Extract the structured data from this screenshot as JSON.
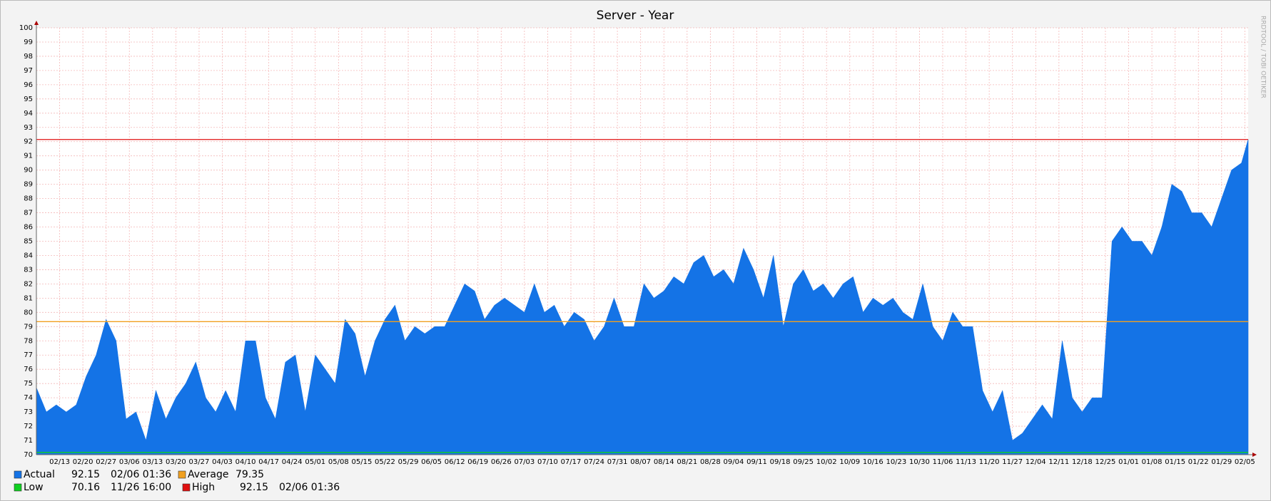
{
  "chart_data": {
    "type": "area",
    "title": "Server - Year",
    "watermark": "RRDTOOL / TOBI OETIKER",
    "xlim": [
      0,
      365
    ],
    "xticks": [
      {
        "value": 7,
        "label": "02/13"
      },
      {
        "value": 14,
        "label": "02/20"
      },
      {
        "value": 21,
        "label": "02/27"
      },
      {
        "value": 28,
        "label": "03/06"
      },
      {
        "value": 35,
        "label": "03/13"
      },
      {
        "value": 42,
        "label": "03/20"
      },
      {
        "value": 49,
        "label": "03/27"
      },
      {
        "value": 56,
        "label": "04/03"
      },
      {
        "value": 63,
        "label": "04/10"
      },
      {
        "value": 70,
        "label": "04/17"
      },
      {
        "value": 77,
        "label": "04/24"
      },
      {
        "value": 84,
        "label": "05/01"
      },
      {
        "value": 91,
        "label": "05/08"
      },
      {
        "value": 98,
        "label": "05/15"
      },
      {
        "value": 105,
        "label": "05/22"
      },
      {
        "value": 112,
        "label": "05/29"
      },
      {
        "value": 119,
        "label": "06/05"
      },
      {
        "value": 126,
        "label": "06/12"
      },
      {
        "value": 133,
        "label": "06/19"
      },
      {
        "value": 140,
        "label": "06/26"
      },
      {
        "value": 147,
        "label": "07/03"
      },
      {
        "value": 154,
        "label": "07/10"
      },
      {
        "value": 161,
        "label": "07/17"
      },
      {
        "value": 168,
        "label": "07/24"
      },
      {
        "value": 175,
        "label": "07/31"
      },
      {
        "value": 182,
        "label": "08/07"
      },
      {
        "value": 189,
        "label": "08/14"
      },
      {
        "value": 196,
        "label": "08/21"
      },
      {
        "value": 203,
        "label": "08/28"
      },
      {
        "value": 210,
        "label": "09/04"
      },
      {
        "value": 217,
        "label": "09/11"
      },
      {
        "value": 224,
        "label": "09/18"
      },
      {
        "value": 231,
        "label": "09/25"
      },
      {
        "value": 238,
        "label": "10/02"
      },
      {
        "value": 245,
        "label": "10/09"
      },
      {
        "value": 252,
        "label": "10/16"
      },
      {
        "value": 259,
        "label": "10/23"
      },
      {
        "value": 266,
        "label": "10/30"
      },
      {
        "value": 273,
        "label": "11/06"
      },
      {
        "value": 280,
        "label": "11/13"
      },
      {
        "value": 287,
        "label": "11/20"
      },
      {
        "value": 294,
        "label": "11/27"
      },
      {
        "value": 301,
        "label": "12/04"
      },
      {
        "value": 308,
        "label": "12/11"
      },
      {
        "value": 315,
        "label": "12/18"
      },
      {
        "value": 322,
        "label": "12/25"
      },
      {
        "value": 329,
        "label": "01/01"
      },
      {
        "value": 336,
        "label": "01/08"
      },
      {
        "value": 343,
        "label": "01/15"
      },
      {
        "value": 350,
        "label": "01/22"
      },
      {
        "value": 357,
        "label": "01/29"
      },
      {
        "value": 364,
        "label": "02/05"
      }
    ],
    "ylim": [
      70,
      100
    ],
    "yticks": [
      70,
      71,
      72,
      73,
      74,
      75,
      76,
      77,
      78,
      79,
      80,
      81,
      82,
      83,
      84,
      85,
      86,
      87,
      88,
      89,
      90,
      91,
      92,
      93,
      94,
      95,
      96,
      97,
      98,
      99,
      100
    ],
    "grid": true,
    "x": [
      0,
      3,
      6,
      9,
      12,
      15,
      18,
      21,
      24,
      27,
      30,
      33,
      36,
      39,
      42,
      45,
      48,
      51,
      54,
      57,
      60,
      63,
      66,
      69,
      72,
      75,
      78,
      81,
      84,
      87,
      90,
      93,
      96,
      99,
      102,
      105,
      108,
      111,
      114,
      117,
      120,
      123,
      126,
      129,
      132,
      135,
      138,
      141,
      144,
      147,
      150,
      153,
      156,
      159,
      162,
      165,
      168,
      171,
      174,
      177,
      180,
      183,
      186,
      189,
      192,
      195,
      198,
      201,
      204,
      207,
      210,
      213,
      216,
      219,
      222,
      225,
      228,
      231,
      234,
      237,
      240,
      243,
      246,
      249,
      252,
      255,
      258,
      261,
      264,
      267,
      270,
      273,
      276,
      279,
      282,
      285,
      288,
      291,
      294,
      297,
      300,
      303,
      306,
      309,
      312,
      315,
      318,
      321,
      324,
      327,
      330,
      333,
      336,
      339,
      342,
      345,
      348,
      351,
      354,
      357,
      360,
      363,
      365
    ],
    "series": [
      {
        "name": "Actual",
        "color": "#1473e6",
        "current": 92.15,
        "time": "02/06 01:36",
        "values": [
          74.7,
          73,
          73.5,
          73,
          73.5,
          75.5,
          77,
          79.5,
          78,
          72.5,
          73,
          71,
          74.5,
          72.5,
          74,
          75,
          76.5,
          74,
          73,
          74.5,
          73,
          78,
          78,
          74,
          72.5,
          76.5,
          77,
          73,
          77,
          76,
          75,
          79.5,
          78.5,
          75.5,
          78,
          79.5,
          80.5,
          78,
          79,
          78.5,
          79,
          79,
          80.5,
          82,
          81.5,
          79.5,
          80.5,
          81,
          80.5,
          80,
          82,
          80,
          80.5,
          79,
          80,
          79.5,
          78,
          79,
          81,
          79,
          79,
          82,
          81,
          81.5,
          82.5,
          82,
          83.5,
          84,
          82.5,
          83,
          82,
          84.5,
          83,
          81,
          84,
          79,
          82,
          83,
          81.5,
          82,
          81,
          82,
          82.5,
          80,
          81,
          80.5,
          81,
          80,
          79.5,
          82,
          79,
          78,
          80,
          79,
          79,
          74.5,
          73,
          74.5,
          71,
          71.5,
          72.5,
          73.5,
          72.5,
          78,
          74,
          73,
          74,
          74,
          85,
          86,
          85,
          85,
          84,
          86,
          89,
          88.5,
          87,
          87,
          86,
          88,
          90,
          90.5,
          92.15
        ]
      }
    ],
    "reference_lines": [
      {
        "name": "Average",
        "color": "#f0a020",
        "value": 79.35
      },
      {
        "name": "Low",
        "color": "#10d020",
        "value": 70.16,
        "time": "11/26 16:00"
      },
      {
        "name": "High",
        "color": "#e01010",
        "value": 92.15,
        "time": "02/06 01:36"
      }
    ]
  }
}
